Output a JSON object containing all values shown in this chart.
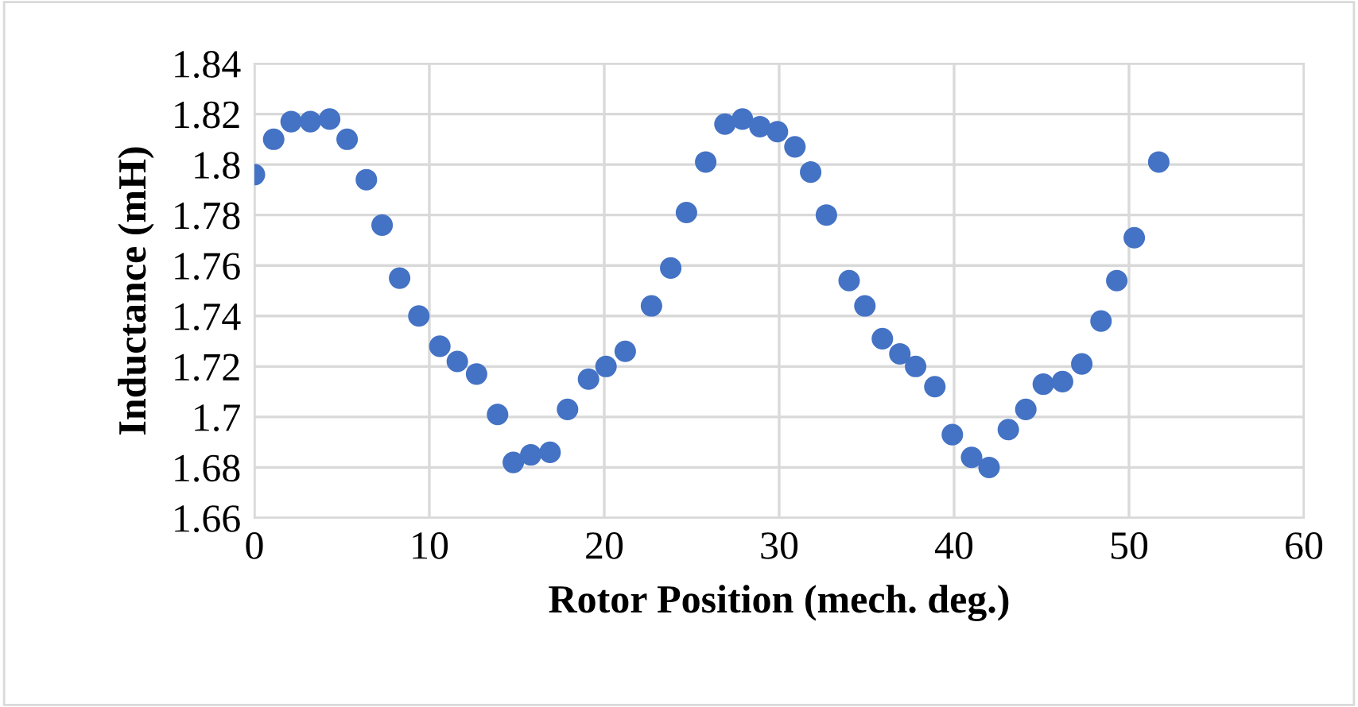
{
  "chart_data": {
    "type": "scatter",
    "xlabel": "Rotor Position (mech. deg.)",
    "ylabel": "Inductance (mH)",
    "x": [
      0,
      1.1,
      2.1,
      3.2,
      4.3,
      5.3,
      6.4,
      7.3,
      8.3,
      9.4,
      10.6,
      11.6,
      12.7,
      13.9,
      14.8,
      15.8,
      16.9,
      17.9,
      19.1,
      20.1,
      21.2,
      22.7,
      23.8,
      24.7,
      25.8,
      26.9,
      27.9,
      28.9,
      29.9,
      30.9,
      31.8,
      32.7,
      34,
      34.9,
      35.9,
      36.9,
      37.8,
      38.9,
      39.9,
      41,
      42,
      43.1,
      44.1,
      45.1,
      46.2,
      47.3,
      48.4,
      49.3,
      50.3,
      51.7
    ],
    "series": [
      {
        "color": "#4472c4",
        "values": [
          1.796,
          1.81,
          1.817,
          1.817,
          1.818,
          1.81,
          1.794,
          1.776,
          1.755,
          1.74,
          1.728,
          1.722,
          1.717,
          1.701,
          1.682,
          1.685,
          1.686,
          1.703,
          1.715,
          1.72,
          1.726,
          1.744,
          1.759,
          1.781,
          1.801,
          1.816,
          1.818,
          1.815,
          1.813,
          1.807,
          1.797,
          1.78,
          1.754,
          1.744,
          1.731,
          1.725,
          1.72,
          1.712,
          1.693,
          1.684,
          1.68,
          1.695,
          1.703,
          1.713,
          1.714,
          1.721,
          1.738,
          1.754,
          1.771,
          1.801
        ]
      }
    ],
    "xlim": [
      0,
      60
    ],
    "xticks": [
      0,
      10,
      20,
      30,
      40,
      50,
      60
    ],
    "ylim": [
      1.66,
      1.84
    ],
    "yticks": [
      1.66,
      1.68,
      {
        "value": 1.7,
        "label": "1.7"
      },
      1.72,
      1.74,
      1.76,
      1.78,
      {
        "value": 1.8,
        "label": "1.8"
      },
      1.82,
      1.84
    ],
    "grid": true,
    "marker": "circle",
    "legend": false
  }
}
